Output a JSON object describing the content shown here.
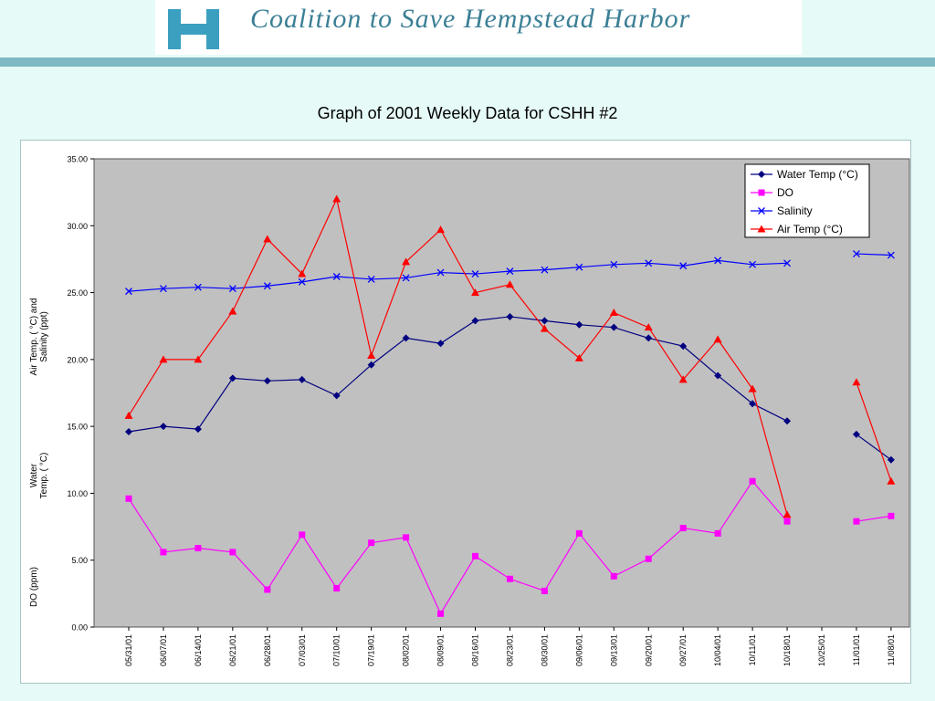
{
  "header": {
    "org_name": "Coalition to Save Hempstead Harbor",
    "logo_icon": "hh-monogram-logo",
    "brand_color": "#3b7f95"
  },
  "page_title": "Graph of 2001 Weekly Data for CSHH #2",
  "chart_data": {
    "type": "line",
    "ylabel_lines": [
      [
        "Air Temp. ( °C) and",
        "Salinity (ppt)"
      ],
      [
        "Water",
        "Temp. ( °C)"
      ],
      [
        "DO (ppm)"
      ]
    ],
    "ylim": [
      0,
      35
    ],
    "yticks": [
      "0.00",
      "5.00",
      "10.00",
      "15.00",
      "20.00",
      "25.00",
      "30.00",
      "35.00"
    ],
    "categories": [
      "05/31/01",
      "06/07/01",
      "06/14/01",
      "06/21/01",
      "06/28/01",
      "07/03/01",
      "07/10/01",
      "07/19/01",
      "08/02/01",
      "08/09/01",
      "08/16/01",
      "08/23/01",
      "08/30/01",
      "09/06/01",
      "09/13/01",
      "09/20/01",
      "09/27/01",
      "10/04/01",
      "10/11/01",
      "10/18/01",
      "10/25/01",
      "11/01/01",
      "11/08/01"
    ],
    "plot_background": "#c0c0c0",
    "grid": false,
    "legend_position": "top-right",
    "series": [
      {
        "name": "Water Temp (°C)",
        "color": "#000080",
        "marker": "diamond",
        "values": [
          14.6,
          15.0,
          14.8,
          18.6,
          18.4,
          18.5,
          17.3,
          19.6,
          21.6,
          21.2,
          22.9,
          23.2,
          22.9,
          22.6,
          22.4,
          21.6,
          21.0,
          18.8,
          16.7,
          15.4,
          null,
          14.4,
          12.5
        ]
      },
      {
        "name": "DO",
        "color": "#ff00ff",
        "marker": "square",
        "values": [
          9.6,
          5.6,
          5.9,
          5.6,
          2.8,
          6.9,
          2.9,
          6.3,
          6.7,
          1.0,
          5.3,
          3.6,
          2.7,
          7.0,
          3.8,
          5.1,
          7.4,
          7.0,
          10.9,
          7.9,
          null,
          7.9,
          8.3
        ]
      },
      {
        "name": "Salinity",
        "color": "#0000ff",
        "marker": "x",
        "values": [
          25.1,
          25.3,
          25.4,
          25.3,
          25.5,
          25.8,
          26.2,
          26.0,
          26.1,
          26.5,
          26.4,
          26.6,
          26.7,
          26.9,
          27.1,
          27.2,
          27.0,
          27.4,
          27.1,
          27.2,
          null,
          27.9,
          27.8
        ]
      },
      {
        "name": "Air Temp (°C)",
        "color": "#ff0000",
        "marker": "triangle",
        "values": [
          15.8,
          20.0,
          20.0,
          23.6,
          29.0,
          26.4,
          32.0,
          20.3,
          27.3,
          29.7,
          25.0,
          25.6,
          22.3,
          20.1,
          23.5,
          22.4,
          18.5,
          21.5,
          17.8,
          8.4,
          null,
          18.3,
          10.9
        ]
      }
    ]
  }
}
